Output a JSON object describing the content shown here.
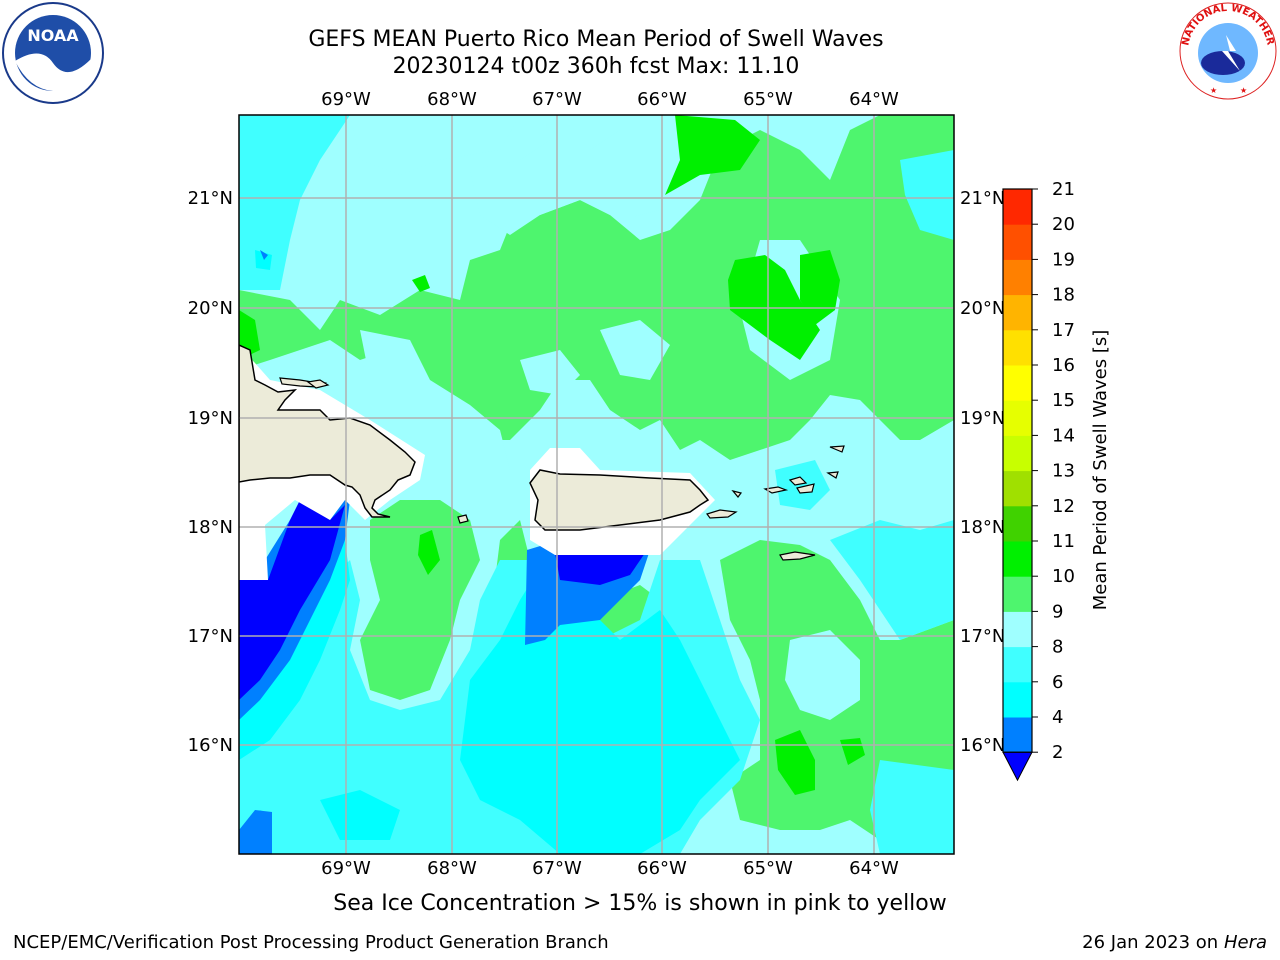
{
  "title_line1": "GEFS MEAN Puerto Rico Mean Period of Swell Waves",
  "title_line2": "20230124 t00z 360h fcst   Max: 11.10",
  "map": {
    "longitude_labels": [
      "69°W",
      "68°W",
      "67°W",
      "66°W",
      "65°W",
      "64°W"
    ],
    "latitude_labels": [
      "21°N",
      "20°N",
      "19°N",
      "18°N",
      "17°N",
      "16°N"
    ],
    "colors": {
      "land": "#ecebd9",
      "grid": "#b0b0b0",
      "level_2_4": "#0000ff",
      "level_4_6": "#0080ff",
      "level_6_8": "#00ffff",
      "level_8_9": "#40ffff",
      "level_9_10": "#9fffff",
      "level_10_11": "#4ef56e",
      "level_11_12": "#00f000"
    }
  },
  "colorbar": {
    "label": "Mean Period of Swell Waves [s]",
    "ticks": [
      "2",
      "4",
      "6",
      "8",
      "9",
      "10",
      "11",
      "12",
      "13",
      "14",
      "15",
      "16",
      "17",
      "18",
      "19",
      "20",
      "21"
    ],
    "colors": [
      "#0080ff",
      "#00ffff",
      "#40ffff",
      "#9fffff",
      "#4ef56e",
      "#00f000",
      "#40d200",
      "#a0e000",
      "#c8ff00",
      "#e6ff00",
      "#ffff00",
      "#ffe000",
      "#ffb400",
      "#ff8000",
      "#ff5000",
      "#ff2800"
    ],
    "extend_color": "#0000ff"
  },
  "sea_ice_note": "Sea Ice Concentration > 15% is shown in pink to yellow",
  "footer": {
    "left": "NCEP/EMC/Verification Post Processing Product Generation Branch",
    "right_prefix": "26 Jan 2023 on ",
    "right_host": "Hera"
  },
  "logos": {
    "left": "NOAA",
    "right": "NATIONAL WEATHER SERVICE"
  }
}
